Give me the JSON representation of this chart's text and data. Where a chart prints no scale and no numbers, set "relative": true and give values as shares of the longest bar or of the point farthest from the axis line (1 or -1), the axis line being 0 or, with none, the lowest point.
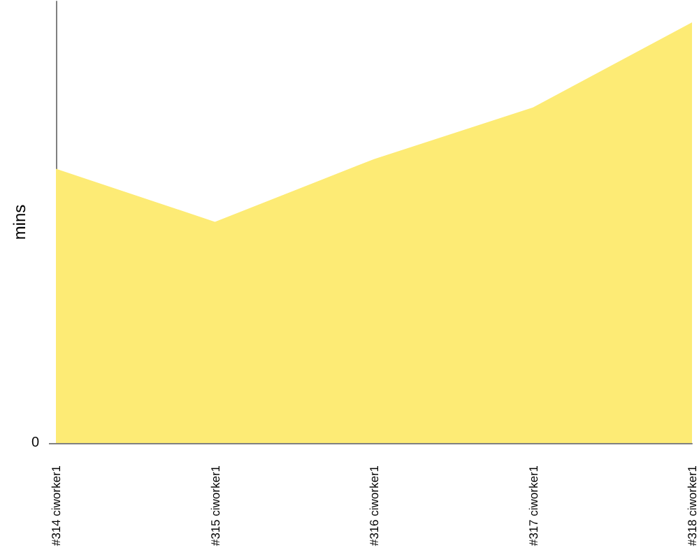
{
  "chart_data": {
    "type": "area",
    "ylabel": "mins",
    "relative": true,
    "categories": [
      "#314 ciworker1",
      "#315 ciworker1",
      "#316 ciworker1",
      "#317 ciworker1",
      "#318 ciworker1"
    ],
    "series": [
      {
        "color": "#fdeb75",
        "values": [
          0.652,
          0.526,
          0.675,
          0.798,
          1
        ]
      }
    ],
    "annotations": [
      "0"
    ],
    "grid": false,
    "legend": false,
    "marker": "none"
  }
}
